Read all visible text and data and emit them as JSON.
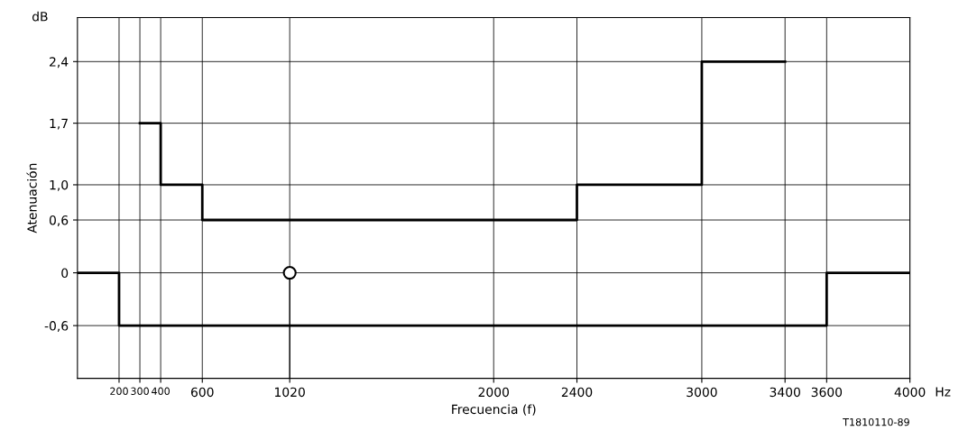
{
  "chart_data": {
    "type": "step",
    "xlabel": "Frecuencia (f)",
    "ylabel": "Atenuación",
    "series": [
      {
        "color": "#000000",
        "x": [
          300,
          400,
          600,
          2400,
          3000,
          3400
        ],
        "values": [
          1.7,
          1.0,
          0.6,
          1.0,
          2.4,
          2.4
        ]
      },
      {
        "color": "#000000",
        "x": [
          0,
          200,
          3600,
          4000
        ],
        "values": [
          0,
          -0.6,
          0,
          0
        ]
      },
      {
        "type": "scatter",
        "color": "#000000",
        "x": [
          1020
        ],
        "values": [
          0
        ],
        "marker": "circle"
      }
    ],
    "xlim": [
      0,
      4000
    ],
    "xticks": [
      200,
      300,
      400,
      600,
      1020,
      2000,
      2400,
      3000,
      3400,
      3600,
      4000
    ],
    "ylim": [
      -1.2,
      2.9
    ],
    "yticks": [
      {
        "value": -0.6,
        "label": "-0,6"
      },
      0,
      {
        "value": 0.6,
        "label": "0,6"
      },
      {
        "value": 1.0,
        "label": "1,0"
      },
      {
        "value": 1.7,
        "label": "1,7"
      },
      {
        "value": 2.4,
        "label": "2,4"
      }
    ],
    "grid": true,
    "annotations": [
      "dB",
      "Hz",
      "T1810110-89"
    ]
  }
}
